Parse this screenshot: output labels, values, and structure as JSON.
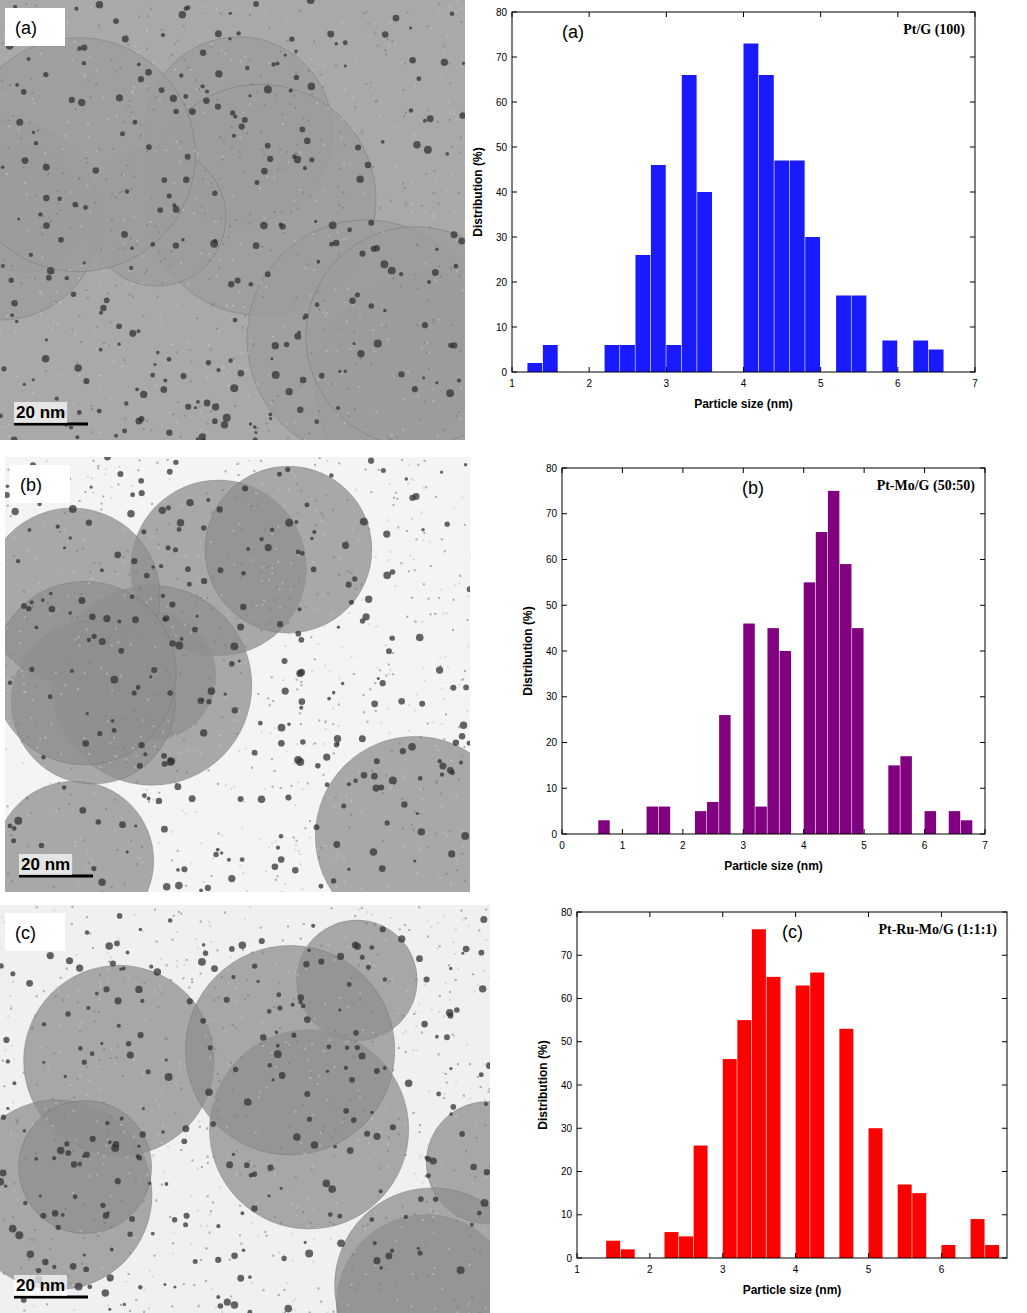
{
  "chart_data": [
    {
      "type": "histogram",
      "title": "Pt/G (100)",
      "panel_label": "(a)",
      "color": "#1a1aff",
      "x_label": "Particle size (nm)",
      "y_label": "Distribution (%)",
      "bins": [
        1.2,
        1.4,
        1.6,
        1.8,
        2.0,
        2.2,
        2.4,
        2.6,
        2.8,
        3.0,
        3.2,
        3.4,
        3.6,
        3.8,
        4.0,
        4.2,
        4.4,
        4.6,
        4.8,
        5.0,
        5.2,
        5.4,
        5.6,
        5.8,
        6.0,
        6.2,
        6.4,
        6.6,
        6.8
      ],
      "counts": [
        2,
        6,
        0,
        0,
        0,
        6,
        6,
        26,
        46,
        6,
        66,
        40,
        0,
        0,
        73,
        66,
        47,
        47,
        30,
        0,
        17,
        17,
        0,
        7,
        0,
        7,
        5,
        0
      ],
      "xlim": [
        1,
        7
      ],
      "xticks": [
        1,
        2,
        3,
        4,
        5,
        6,
        7
      ],
      "ylim": [
        0,
        80
      ],
      "yticks": [
        0,
        10,
        20,
        30,
        40,
        50,
        60,
        70,
        80
      ]
    },
    {
      "type": "histogram",
      "title": "Pt-Mo/G (50:50)",
      "panel_label": "(b)",
      "color": "#800080",
      "x_label": "Particle size (nm)",
      "y_label": "Distribution (%)",
      "bins": [
        0.6,
        0.8,
        1.0,
        1.2,
        1.4,
        1.6,
        1.8,
        2.0,
        2.2,
        2.4,
        2.6,
        2.8,
        3.0,
        3.2,
        3.4,
        3.6,
        3.8,
        4.0,
        4.2,
        4.4,
        4.6,
        4.8,
        5.0,
        5.2,
        5.4,
        5.6,
        5.8,
        6.0,
        6.2,
        6.4,
        6.6,
        6.8
      ],
      "counts": [
        3,
        0,
        0,
        0,
        6,
        6,
        0,
        0,
        5,
        7,
        26,
        0,
        46,
        6,
        45,
        40,
        0,
        55,
        66,
        75,
        59,
        45,
        0,
        0,
        15,
        17,
        0,
        5,
        0,
        5,
        3
      ],
      "xlim": [
        0,
        7
      ],
      "xticks": [
        0,
        1,
        2,
        3,
        4,
        5,
        6,
        7
      ],
      "ylim": [
        0,
        80
      ],
      "yticks": [
        0,
        10,
        20,
        30,
        40,
        50,
        60,
        70,
        80
      ]
    },
    {
      "type": "histogram",
      "title": "Pt-Ru-Mo/G (1:1:1)",
      "panel_label": "(c)",
      "color": "#ff0000",
      "x_label": "Particle size (nm)",
      "y_label": "Distribution (%)",
      "bins": [
        1.2,
        1.4,
        1.6,
        1.8,
        2.0,
        2.2,
        2.4,
        2.6,
        2.8,
        3.0,
        3.2,
        3.4,
        3.6,
        3.8,
        4.0,
        4.2,
        4.4,
        4.6,
        4.8,
        5.0,
        5.2,
        5.4,
        5.6,
        5.8,
        6.0,
        6.2,
        6.4,
        6.6,
        6.8
      ],
      "counts": [
        0,
        4,
        2,
        0,
        0,
        6,
        5,
        26,
        0,
        46,
        55,
        76,
        65,
        0,
        63,
        66,
        0,
        53,
        0,
        30,
        0,
        17,
        15,
        0,
        3,
        0,
        9,
        3
      ],
      "xlim": [
        1,
        6.9
      ],
      "xticks": [
        1,
        2,
        3,
        4,
        5,
        6
      ],
      "ylim": [
        0,
        80
      ],
      "yticks": [
        0,
        10,
        20,
        30,
        40,
        50,
        60,
        70,
        80
      ]
    }
  ],
  "images": [
    {
      "panel_label": "(a)",
      "scale_bar": "20 nm"
    },
    {
      "panel_label": "(b)",
      "scale_bar": "20 nm"
    },
    {
      "panel_label": "(c)",
      "scale_bar": "20 nm"
    }
  ]
}
